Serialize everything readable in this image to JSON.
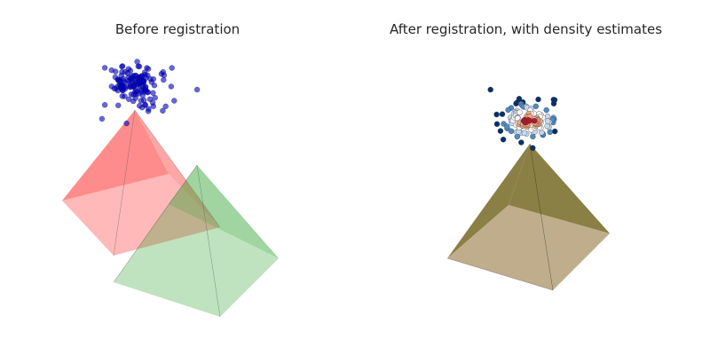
{
  "panels": [
    {
      "title": "Before registration",
      "pyramids": [
        {
          "name": "red",
          "color": "#ff0000",
          "face_opacity": 0.45,
          "base_opacity": 0.28
        },
        {
          "name": "green",
          "color": "#2ca02c",
          "face_opacity": 0.55,
          "base_opacity": 0.3
        }
      ],
      "points": {
        "color": "#0000cc",
        "count": 140
      }
    },
    {
      "title": "After registration, with density estimates",
      "pyramids": [
        {
          "name": "overlap",
          "color": "#8a7f45",
          "base_color": "#c0ad8b"
        }
      ],
      "points": {
        "colormap": [
          "#08306b",
          "#4f8bc2",
          "#c6dbef",
          "#f7f7f7",
          "#f4a582",
          "#b2182b"
        ],
        "count": 120
      }
    }
  ]
}
